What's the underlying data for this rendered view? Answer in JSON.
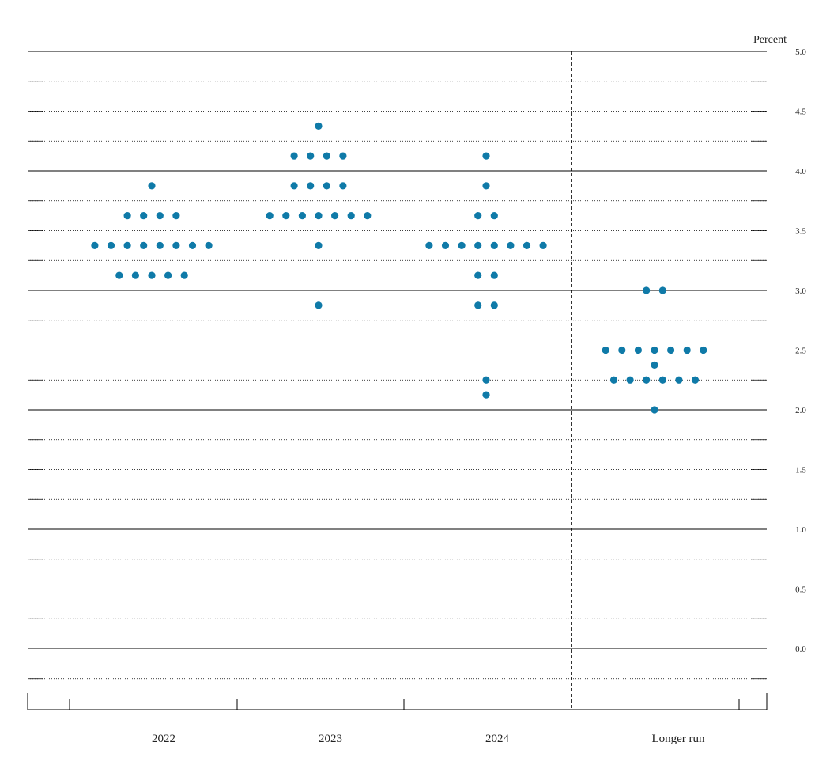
{
  "chart_data": {
    "type": "scatter",
    "subtype": "dot-plot",
    "unit_label": "Percent",
    "ylim": [
      -0.25,
      5.0
    ],
    "yticks": [
      "5.0",
      "4.5",
      "4.0",
      "3.5",
      "3.0",
      "2.5",
      "2.0",
      "1.5",
      "1.0",
      "0.5",
      "0.0"
    ],
    "grid": "dotted every 0.25, solid at whole percents",
    "categories": [
      "2022",
      "2023",
      "2024",
      "Longer run"
    ],
    "dot_color": "#0f7aa8",
    "series": [
      {
        "category": "2022",
        "rows": [
          {
            "y": 3.875,
            "count": 1
          },
          {
            "y": 3.625,
            "count": 4
          },
          {
            "y": 3.375,
            "count": 8
          },
          {
            "y": 3.125,
            "count": 5
          }
        ]
      },
      {
        "category": "2023",
        "rows": [
          {
            "y": 4.375,
            "count": 1
          },
          {
            "y": 4.125,
            "count": 4
          },
          {
            "y": 3.875,
            "count": 4
          },
          {
            "y": 3.625,
            "count": 7
          },
          {
            "y": 3.375,
            "count": 1
          },
          {
            "y": 2.875,
            "count": 1
          }
        ]
      },
      {
        "category": "2024",
        "rows": [
          {
            "y": 4.125,
            "count": 1
          },
          {
            "y": 3.875,
            "count": 1
          },
          {
            "y": 3.625,
            "count": 2
          },
          {
            "y": 3.375,
            "count": 8
          },
          {
            "y": 3.125,
            "count": 2
          },
          {
            "y": 2.875,
            "count": 2
          },
          {
            "y": 2.25,
            "count": 1
          },
          {
            "y": 2.125,
            "count": 1
          }
        ]
      },
      {
        "category": "Longer run",
        "rows": [
          {
            "y": 3.0,
            "count": 2
          },
          {
            "y": 2.5,
            "count": 7
          },
          {
            "y": 2.375,
            "count": 1
          },
          {
            "y": 2.25,
            "count": 6
          },
          {
            "y": 2.0,
            "count": 1
          }
        ]
      }
    ]
  }
}
